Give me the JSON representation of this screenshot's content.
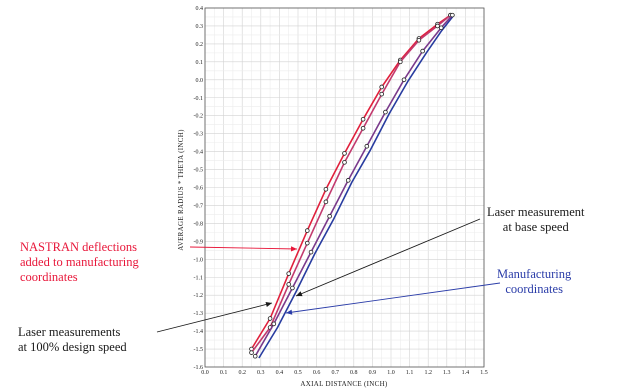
{
  "chart_data": {
    "type": "line",
    "title": "",
    "xlabel": "AXIAL DISTANCE (INCH)",
    "ylabel": "AVERAGE RADIUS * THETA (INCH)",
    "xlim": [
      0.0,
      1.5
    ],
    "ylim": [
      -1.6,
      0.4
    ],
    "x_ticks": [
      "0.0",
      "0.1",
      "0.2",
      "0.3",
      "0.4",
      "0.5",
      "0.6",
      "0.7",
      "0.8",
      "0.9",
      "1.0",
      "1.1",
      "1.2",
      "1.3",
      "1.4",
      "1.5"
    ],
    "y_ticks": [
      "0.4",
      "0.3",
      "0.2",
      "0.1",
      "0.0",
      "-0.1",
      "-0.2",
      "-0.3",
      "-0.4",
      "-0.5",
      "-0.6",
      "-0.7",
      "-0.8",
      "-0.9",
      "-1.0",
      "-1.1",
      "-1.2",
      "-1.3",
      "-1.4",
      "-1.5",
      "-1.6"
    ],
    "grid": true,
    "series": [
      {
        "color": "#e0203c",
        "x": [
          0.25,
          0.35,
          0.45,
          0.55,
          0.65,
          0.75,
          0.85,
          0.95,
          1.05,
          1.15,
          1.25,
          1.32
        ],
        "y": [
          -1.5,
          -1.33,
          -1.08,
          -0.84,
          -0.61,
          -0.41,
          -0.22,
          -0.04,
          0.11,
          0.23,
          0.31,
          0.36
        ],
        "markers": true
      },
      {
        "color": "#c23a6e",
        "x": [
          0.25,
          0.35,
          0.45,
          0.55,
          0.65,
          0.75,
          0.85,
          0.95,
          1.05,
          1.15,
          1.25,
          1.32
        ],
        "y": [
          -1.52,
          -1.38,
          -1.14,
          -0.91,
          -0.68,
          -0.46,
          -0.27,
          -0.08,
          0.1,
          0.22,
          0.3,
          0.36
        ],
        "markers": true
      },
      {
        "color": "#283ca0",
        "x": [
          0.29,
          0.39,
          0.49,
          0.59,
          0.69,
          0.79,
          0.89,
          0.99,
          1.09,
          1.19,
          1.27,
          1.33
        ],
        "y": [
          -1.55,
          -1.38,
          -1.18,
          -0.97,
          -0.78,
          -0.57,
          -0.39,
          -0.19,
          -0.01,
          0.15,
          0.27,
          0.35
        ],
        "markers": false
      },
      {
        "color": "#7a3a8c",
        "x": [
          0.27,
          0.37,
          0.47,
          0.57,
          0.67,
          0.77,
          0.87,
          0.97,
          1.07,
          1.17,
          1.27,
          1.33
        ],
        "y": [
          -1.54,
          -1.36,
          -1.16,
          -0.96,
          -0.76,
          -0.56,
          -0.37,
          -0.18,
          0.0,
          0.16,
          0.29,
          0.36
        ],
        "markers": true
      }
    ]
  },
  "annotations": {
    "nastran": "NASTRAN deflections\nadded to manufacturing\ncoordinates",
    "laser_base": "Laser measurement\nat base speed",
    "manufacturing": "Manufacturing\ncoordinates",
    "laser_100": "Laser measurements\nat 100% design speed"
  },
  "colors": {
    "nastran": "#e8173a",
    "manufacturing": "#2a3ca8",
    "laser": "#1a1a1a"
  }
}
